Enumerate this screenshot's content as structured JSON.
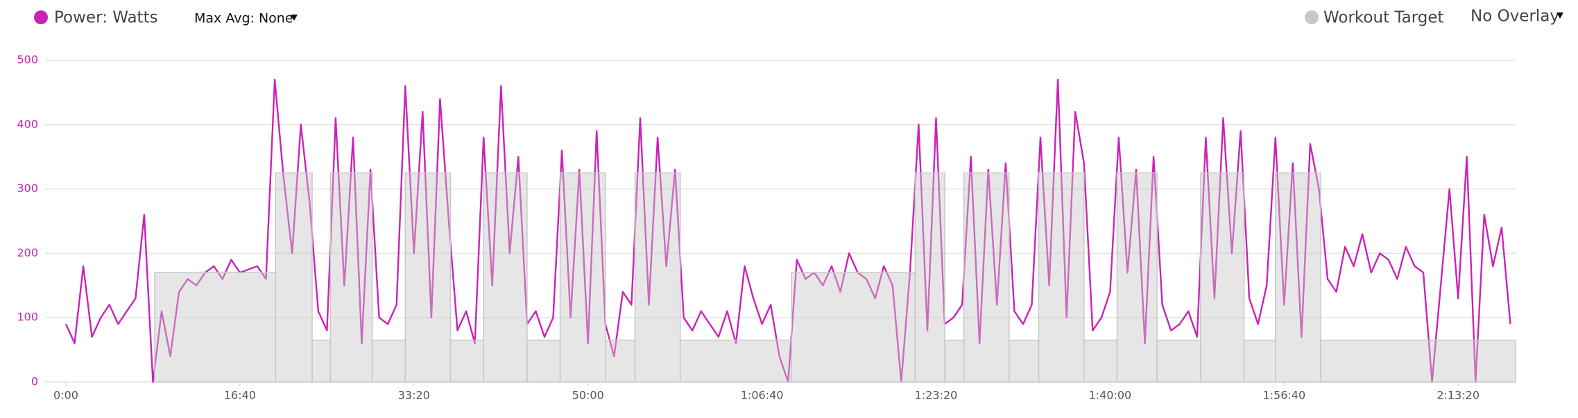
{
  "chart_data": {
    "type": "line",
    "controls": {
      "max_avg": "Max Avg: None",
      "overlay": "No Overlay"
    },
    "xlim": [
      0,
      8330
    ],
    "ylim": [
      0,
      500
    ],
    "yticks": [
      0,
      100,
      200,
      300,
      400,
      500
    ],
    "xticks": [
      {
        "value": 0,
        "label": "0:00"
      },
      {
        "value": 1000,
        "label": "16:40"
      },
      {
        "value": 2000,
        "label": "33:20"
      },
      {
        "value": 3000,
        "label": "50:00"
      },
      {
        "value": 4000,
        "label": "1:06:40"
      },
      {
        "value": 5000,
        "label": "1:23:20"
      },
      {
        "value": 6000,
        "label": "1:40:00"
      },
      {
        "value": 7000,
        "label": "1:56:40"
      },
      {
        "value": 8000,
        "label": "2:13:20"
      }
    ],
    "grid": true,
    "series": [
      {
        "name": "Power: Watts",
        "color": "#cc22b6",
        "x": [
          0,
          50,
          100,
          150,
          200,
          250,
          300,
          350,
          400,
          450,
          500,
          550,
          600,
          650,
          700,
          750,
          800,
          850,
          900,
          950,
          1000,
          1050,
          1100,
          1150,
          1200,
          1250,
          1300,
          1350,
          1400,
          1450,
          1500,
          1550,
          1600,
          1650,
          1700,
          1750,
          1800,
          1850,
          1900,
          1950,
          2000,
          2050,
          2100,
          2150,
          2200,
          2250,
          2300,
          2350,
          2400,
          2450,
          2500,
          2550,
          2600,
          2650,
          2700,
          2750,
          2800,
          2850,
          2900,
          2950,
          3000,
          3050,
          3100,
          3150,
          3200,
          3250,
          3300,
          3350,
          3400,
          3450,
          3500,
          3550,
          3600,
          3650,
          3700,
          3750,
          3800,
          3850,
          3900,
          3950,
          4000,
          4050,
          4100,
          4150,
          4200,
          4250,
          4300,
          4350,
          4400,
          4450,
          4500,
          4550,
          4600,
          4650,
          4700,
          4750,
          4800,
          4850,
          4900,
          4950,
          5000,
          5050,
          5100,
          5150,
          5200,
          5250,
          5300,
          5350,
          5400,
          5450,
          5500,
          5550,
          5600,
          5650,
          5700,
          5750,
          5800,
          5850,
          5900,
          5950,
          6000,
          6050,
          6100,
          6150,
          6200,
          6250,
          6300,
          6350,
          6400,
          6450,
          6500,
          6550,
          6600,
          6650,
          6700,
          6750,
          6800,
          6850,
          6900,
          6950,
          7000,
          7050,
          7100,
          7150,
          7200,
          7250,
          7300,
          7350,
          7400,
          7450,
          7500,
          7550,
          7600,
          7650,
          7700,
          7750,
          7800,
          7850,
          7900,
          7950,
          8000,
          8050,
          8100,
          8150,
          8200,
          8250,
          8300
        ],
        "values": [
          90,
          60,
          180,
          70,
          100,
          120,
          90,
          110,
          130,
          260,
          0,
          110,
          40,
          140,
          160,
          150,
          170,
          180,
          160,
          190,
          170,
          175,
          180,
          160,
          470,
          320,
          200,
          400,
          280,
          110,
          80,
          410,
          150,
          380,
          60,
          330,
          100,
          90,
          120,
          460,
          200,
          420,
          100,
          440,
          250,
          80,
          110,
          60,
          380,
          150,
          460,
          200,
          350,
          90,
          110,
          70,
          100,
          360,
          100,
          330,
          60,
          390,
          90,
          40,
          140,
          120,
          410,
          120,
          380,
          180,
          330,
          100,
          80,
          110,
          90,
          70,
          110,
          60,
          180,
          130,
          90,
          120,
          40,
          0,
          190,
          160,
          170,
          150,
          180,
          140,
          200,
          170,
          160,
          130,
          180,
          150,
          0,
          170,
          400,
          80,
          410,
          90,
          100,
          120,
          350,
          60,
          330,
          120,
          340,
          110,
          90,
          120,
          380,
          150,
          470,
          100,
          420,
          340,
          80,
          100,
          140,
          380,
          170,
          330,
          60,
          350,
          120,
          80,
          90,
          110,
          70,
          380,
          130,
          410,
          200,
          390,
          130,
          90,
          150,
          380,
          120,
          340,
          70,
          370,
          300,
          160,
          140,
          210,
          180,
          230,
          170,
          200,
          190,
          160,
          210,
          180,
          170,
          0,
          150,
          300,
          130,
          350,
          0,
          260,
          180,
          240,
          90
        ]
      },
      {
        "name": "Workout Target",
        "color": "#c8c8c8",
        "bins": [
          0,
          510,
          1205,
          1415,
          1520,
          1760,
          1950,
          2210,
          2400,
          2650,
          2840,
          3100,
          3270,
          3530,
          4170,
          4880,
          5050,
          5160,
          5420,
          5590,
          5850,
          6040,
          6270,
          6520,
          6770,
          6950,
          7210,
          8330
        ],
        "values": [
          0,
          170,
          325,
          65,
          325,
          65,
          325,
          65,
          325,
          65,
          325,
          65,
          325,
          65,
          170,
          325,
          65,
          325,
          65,
          325,
          65,
          325,
          65,
          325,
          65,
          325,
          65
        ]
      }
    ]
  }
}
